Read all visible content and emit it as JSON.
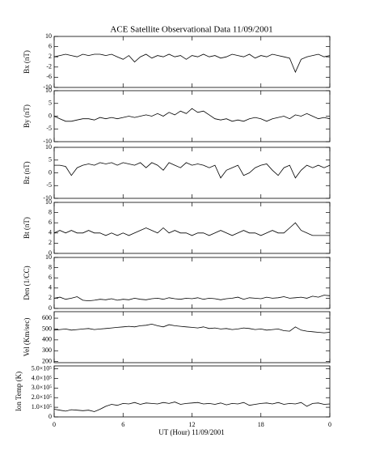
{
  "chart_data": {
    "title": "ACE Satellite Observational Data   11/09/2001",
    "x_label": "UT (Hour)   11/09/2001",
    "x": [
      0,
      0.5,
      1,
      1.5,
      2,
      2.5,
      3,
      3.5,
      4,
      4.5,
      5,
      5.5,
      6,
      6.5,
      7,
      7.5,
      8,
      8.5,
      9,
      9.5,
      10,
      10.5,
      11,
      11.5,
      12,
      12.5,
      13,
      13.5,
      14,
      14.5,
      15,
      15.5,
      16,
      16.5,
      17,
      17.5,
      18,
      18.5,
      19,
      19.5,
      20,
      20.5,
      21,
      21.5,
      22,
      22.5,
      23,
      23.5,
      24
    ],
    "xlim": [
      0,
      24
    ],
    "xticks": [
      0,
      6,
      12,
      18,
      {
        "value": 24,
        "label": "0"
      }
    ],
    "panels": [
      {
        "type": "line",
        "y_label": "Bx (nT)",
        "ylim": [
          -10,
          10
        ],
        "yticks": [
          -10,
          -6,
          -2,
          2,
          6,
          10
        ],
        "color": "#000000",
        "values": [
          2,
          2.5,
          3,
          2.5,
          2,
          3,
          2.5,
          3,
          3,
          2.5,
          3,
          2,
          1,
          2.5,
          0,
          2,
          3,
          1.5,
          2.5,
          2,
          3,
          2,
          2.5,
          1,
          2.5,
          2,
          3,
          2,
          2.5,
          1.5,
          2,
          3,
          2.5,
          2,
          3,
          1.5,
          2.5,
          2,
          3,
          2.5,
          2,
          1.5,
          -4,
          1,
          2,
          2.5,
          3,
          2,
          2.5
        ]
      },
      {
        "type": "line",
        "y_label": "By (nT)",
        "ylim": [
          -10,
          10
        ],
        "yticks": [
          -10,
          -5,
          0,
          5,
          10
        ],
        "color": "#000000",
        "values": [
          0,
          -1,
          -2,
          -2,
          -1.5,
          -1,
          -1,
          -1.5,
          -0.5,
          -1,
          -0.5,
          -1,
          -0.5,
          0,
          -0.5,
          0,
          0.5,
          0,
          1,
          0,
          1.5,
          0.5,
          2,
          1,
          3,
          1.5,
          2,
          0.5,
          -1,
          -1.5,
          -1,
          -2,
          -1.5,
          -2,
          -1,
          -0.5,
          -1,
          -2,
          -1,
          -0.5,
          0,
          -1,
          0.5,
          0,
          1,
          0,
          -1,
          -0.5,
          -1
        ]
      },
      {
        "type": "line",
        "y_label": "Bz (nT)",
        "ylim": [
          -10,
          10
        ],
        "yticks": [
          -10,
          -5,
          0,
          5,
          10
        ],
        "color": "#000000",
        "values": [
          3,
          3,
          2.5,
          -1,
          2,
          3,
          3.5,
          3,
          4,
          3.5,
          4,
          3,
          4,
          3.5,
          3,
          4,
          2,
          4,
          3,
          1,
          4,
          3,
          2,
          4,
          3,
          3.5,
          3,
          2,
          3,
          -2,
          1,
          2,
          3,
          -1,
          0,
          2,
          3,
          3.5,
          1,
          -1,
          2,
          3,
          -2,
          1,
          3,
          2,
          3,
          2,
          3
        ]
      },
      {
        "type": "line",
        "y_label": "Bt (nT)",
        "ylim": [
          0,
          10
        ],
        "yticks": [
          0,
          2,
          4,
          6,
          8,
          10
        ],
        "color": "#000000",
        "values": [
          4,
          4.5,
          4,
          4.5,
          4,
          4,
          4.5,
          4,
          4,
          3.5,
          4,
          3.5,
          4,
          3.5,
          4,
          4.5,
          5,
          4.5,
          4,
          5,
          4,
          4.5,
          4,
          4,
          3.5,
          4,
          4,
          3.5,
          4,
          4.5,
          4,
          3.5,
          4,
          4.5,
          4,
          4,
          3.5,
          4,
          4.5,
          4,
          4,
          5,
          6,
          4.5,
          4,
          3.5,
          3.5,
          3.5,
          3.5
        ]
      },
      {
        "type": "line",
        "y_label": "Den (1/CC)",
        "ylim": [
          0,
          10
        ],
        "yticks": [
          0,
          2,
          4,
          6,
          8,
          10
        ],
        "color": "#000000",
        "values": [
          2,
          2.2,
          1.8,
          2,
          2.3,
          1.6,
          1.5,
          1.6,
          1.8,
          1.7,
          1.9,
          1.6,
          1.8,
          1.7,
          2,
          1.8,
          1.7,
          1.9,
          2,
          1.8,
          2.1,
          1.9,
          1.8,
          2,
          1.9,
          2.1,
          1.8,
          2,
          1.9,
          1.7,
          1.9,
          2,
          2.2,
          1.8,
          2.1,
          2,
          1.9,
          2.2,
          2,
          2.1,
          2.3,
          2,
          2.1,
          2.2,
          2,
          2.4,
          2.2,
          2.6,
          2.5
        ]
      },
      {
        "type": "line",
        "y_label": "Vel (Km/sec)",
        "ylim": [
          190,
          660
        ],
        "yticks": [
          200,
          300,
          400,
          500,
          600
        ],
        "color": "#000000",
        "values": [
          490,
          495,
          500,
          490,
          495,
          500,
          505,
          495,
          500,
          505,
          510,
          515,
          520,
          525,
          520,
          530,
          535,
          545,
          530,
          520,
          540,
          530,
          525,
          520,
          515,
          510,
          520,
          505,
          510,
          500,
          505,
          495,
          500,
          510,
          505,
          495,
          500,
          490,
          495,
          500,
          485,
          480,
          520,
          490,
          480,
          475,
          470,
          465,
          470
        ]
      },
      {
        "type": "line",
        "y_label": "Ion Temp (K)",
        "ylim": [
          0,
          530000
        ],
        "yticks": [
          0,
          {
            "value": 100000,
            "label": "1.0×10⁵"
          },
          {
            "value": 200000,
            "label": "2.0×10⁵"
          },
          {
            "value": 300000,
            "label": "3.0×10⁵"
          },
          {
            "value": 400000,
            "label": "4.0×10⁵"
          },
          {
            "value": 500000,
            "label": "5.0×10⁵"
          }
        ],
        "color": "#000000",
        "values": [
          80000,
          70000,
          60000,
          75000,
          70000,
          65000,
          70000,
          55000,
          80000,
          110000,
          130000,
          120000,
          140000,
          135000,
          150000,
          130000,
          145000,
          140000,
          135000,
          150000,
          140000,
          155000,
          130000,
          140000,
          145000,
          150000,
          135000,
          140000,
          130000,
          145000,
          125000,
          140000,
          135000,
          150000,
          120000,
          130000,
          140000,
          145000,
          135000,
          150000,
          130000,
          140000,
          135000,
          150000,
          110000,
          140000,
          145000,
          130000,
          135000
        ]
      }
    ]
  }
}
